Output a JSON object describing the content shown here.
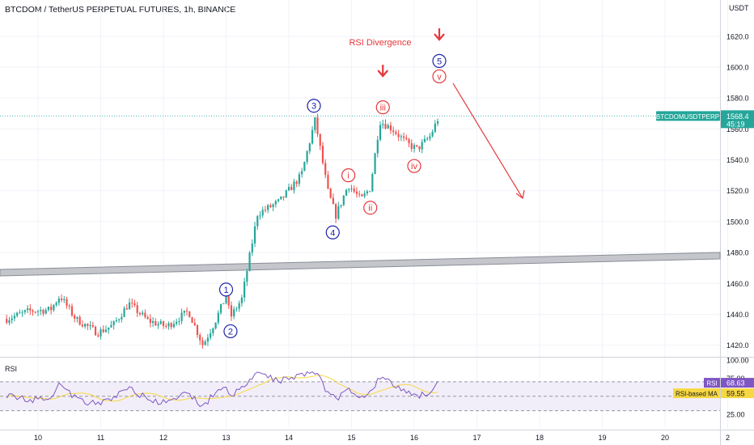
{
  "header": {
    "title": "BTCDOM / TetherUS PERPETUAL FUTURES, 1h, BINANCE"
  },
  "colors": {
    "up": "#26a69a",
    "down": "#ef5350",
    "wave_blue": "#1e22aa",
    "wave_red": "#e5383b",
    "rsi_line": "#7e57c2",
    "rsi_ma": "#f7d842",
    "rsi_band": "#ede7f6",
    "tag_bg": "#26a69a",
    "trendline": "#b2b5be"
  },
  "chart_data": {
    "type": "candlestick",
    "price_axis": {
      "unit": "USDT",
      "ticks": [
        "1620.0",
        "1600.0",
        "1580.0",
        "1560.0",
        "1540.0",
        "1520.0",
        "1500.0",
        "1480.0",
        "1460.0",
        "1440.0",
        "1420.0"
      ],
      "ylim": [
        1413,
        1633
      ]
    },
    "time_axis": {
      "ticks": [
        "10",
        "11",
        "12",
        "13",
        "14",
        "15",
        "16",
        "17",
        "18",
        "19",
        "20",
        "2"
      ]
    },
    "last_price": {
      "symbol": "BTCDOMUSDTPERP",
      "value": "1568.4",
      "countdown": "45:19"
    },
    "annotation": "RSI Divergence",
    "waves_major": [
      "1",
      "2",
      "3",
      "4",
      "5"
    ],
    "waves_minor": [
      "i",
      "ii",
      "iii",
      "iv",
      "v"
    ],
    "anchors": [
      {
        "day": 9.5,
        "price": 1437
      },
      {
        "day": 9.85,
        "price": 1442
      },
      {
        "day": 10.2,
        "price": 1443
      },
      {
        "day": 10.35,
        "price": 1452
      },
      {
        "day": 10.6,
        "price": 1437
      },
      {
        "day": 10.95,
        "price": 1428
      },
      {
        "day": 11.2,
        "price": 1433
      },
      {
        "day": 11.45,
        "price": 1447
      },
      {
        "day": 11.75,
        "price": 1436
      },
      {
        "day": 12.05,
        "price": 1432
      },
      {
        "day": 12.4,
        "price": 1442
      },
      {
        "day": 12.63,
        "price": 1420
      },
      {
        "day": 12.82,
        "price": 1435
      },
      {
        "day": 13.0,
        "price": 1452
      },
      {
        "day": 13.07,
        "price": 1438
      },
      {
        "day": 13.25,
        "price": 1450
      },
      {
        "day": 13.5,
        "price": 1505
      },
      {
        "day": 13.85,
        "price": 1513
      },
      {
        "day": 14.2,
        "price": 1530
      },
      {
        "day": 14.42,
        "price": 1566
      },
      {
        "day": 14.62,
        "price": 1520
      },
      {
        "day": 14.75,
        "price": 1504
      },
      {
        "day": 14.95,
        "price": 1524
      },
      {
        "day": 15.15,
        "price": 1514
      },
      {
        "day": 15.3,
        "price": 1522
      },
      {
        "day": 15.45,
        "price": 1565
      },
      {
        "day": 15.65,
        "price": 1560
      },
      {
        "day": 15.9,
        "price": 1550
      },
      {
        "day": 16.05,
        "price": 1547
      },
      {
        "day": 16.25,
        "price": 1555
      },
      {
        "day": 16.4,
        "price": 1568.4
      }
    ],
    "rsi": {
      "label": "RSI",
      "ma_label": "RSI-based MA",
      "value": "68.63",
      "ma_value": "59.55",
      "ticks": [
        "100.00",
        "75.00",
        "25.00"
      ],
      "levels": [
        70,
        50,
        30
      ],
      "ylim": [
        5,
        100
      ],
      "anchors": [
        {
          "day": 9.5,
          "rsi": 52
        },
        {
          "day": 9.85,
          "rsi": 44
        },
        {
          "day": 10.2,
          "rsi": 50
        },
        {
          "day": 10.35,
          "rsi": 68
        },
        {
          "day": 10.6,
          "rsi": 47
        },
        {
          "day": 10.95,
          "rsi": 38
        },
        {
          "day": 11.2,
          "rsi": 48
        },
        {
          "day": 11.45,
          "rsi": 63
        },
        {
          "day": 11.75,
          "rsi": 45
        },
        {
          "day": 12.05,
          "rsi": 40
        },
        {
          "day": 12.4,
          "rsi": 55
        },
        {
          "day": 12.63,
          "rsi": 35
        },
        {
          "day": 12.82,
          "rsi": 55
        },
        {
          "day": 13.0,
          "rsi": 65
        },
        {
          "day": 13.07,
          "rsi": 50
        },
        {
          "day": 13.25,
          "rsi": 60
        },
        {
          "day": 13.5,
          "rsi": 82
        },
        {
          "day": 13.85,
          "rsi": 72
        },
        {
          "day": 14.2,
          "rsi": 80
        },
        {
          "day": 14.42,
          "rsi": 85
        },
        {
          "day": 14.62,
          "rsi": 55
        },
        {
          "day": 14.75,
          "rsi": 46
        },
        {
          "day": 14.95,
          "rsi": 60
        },
        {
          "day": 15.15,
          "rsi": 50
        },
        {
          "day": 15.3,
          "rsi": 55
        },
        {
          "day": 15.45,
          "rsi": 78
        },
        {
          "day": 15.65,
          "rsi": 66
        },
        {
          "day": 15.9,
          "rsi": 56
        },
        {
          "day": 16.05,
          "rsi": 50
        },
        {
          "day": 16.25,
          "rsi": 57
        },
        {
          "day": 16.4,
          "rsi": 68.63
        }
      ]
    }
  }
}
